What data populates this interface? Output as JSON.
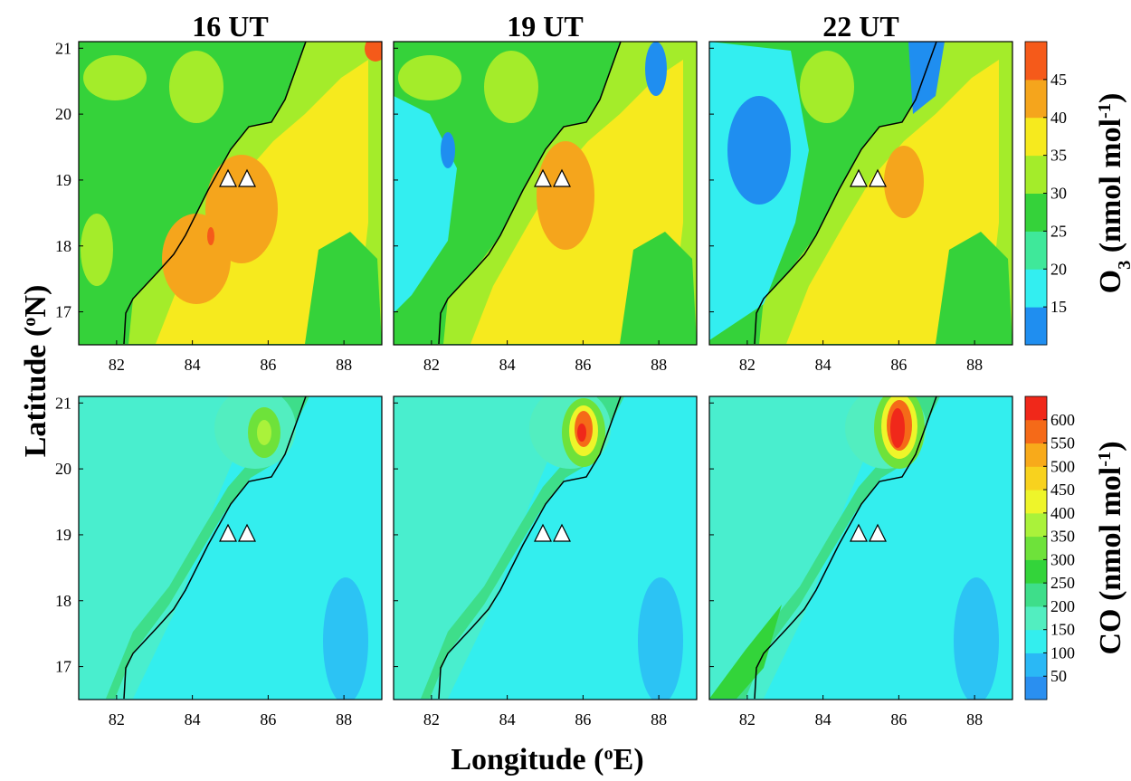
{
  "columns": [
    "16 UT",
    "19 UT",
    "22 UT"
  ],
  "x_axis": {
    "label": [
      {
        "text": "Longitude ("
      },
      {
        "text": "o",
        "sup": true
      },
      {
        "text": "E)"
      }
    ],
    "lim": [
      81,
      89
    ],
    "ticks": [
      82,
      84,
      86,
      88
    ]
  },
  "y_axis": {
    "label": [
      {
        "text": "Latitude ("
      },
      {
        "text": "o",
        "sup": true
      },
      {
        "text": "N)"
      }
    ],
    "lim": [
      16.5,
      21.1
    ],
    "ticks": [
      17,
      18,
      19,
      20,
      21
    ]
  },
  "rows": [
    {
      "colorbar": {
        "label": [
          {
            "text": "O"
          },
          {
            "text": "3",
            "sub": true
          },
          {
            "text": " (nmol mol"
          },
          {
            "text": "-1",
            "sup": true
          },
          {
            "text": ")"
          }
        ],
        "lim": [
          10,
          50
        ],
        "ticks": [
          15,
          20,
          25,
          30,
          35,
          40,
          45
        ],
        "colors": [
          "#1f8ef0",
          "#33eef0",
          "#3fe89a",
          "#35d23a",
          "#a4ec2a",
          "#f6ea1e",
          "#f5a51c",
          "#f55a1a"
        ]
      }
    },
    {
      "colorbar": {
        "label": [
          {
            "text": "CO (nmol mol"
          },
          {
            "text": "-1",
            "sup": true
          },
          {
            "text": ")"
          }
        ],
        "lim": [
          0,
          650
        ],
        "ticks": [
          50,
          100,
          150,
          200,
          250,
          300,
          350,
          400,
          450,
          500,
          550,
          600
        ],
        "colors": [
          "#2a8ff0",
          "#2ab8f5",
          "#33eeee",
          "#52eec0",
          "#3ede8a",
          "#33d43a",
          "#6ee23a",
          "#aaf23a",
          "#eef52a",
          "#f8d21e",
          "#f8aa1a",
          "#f56a18",
          "#f0281a"
        ]
      }
    }
  ]
}
